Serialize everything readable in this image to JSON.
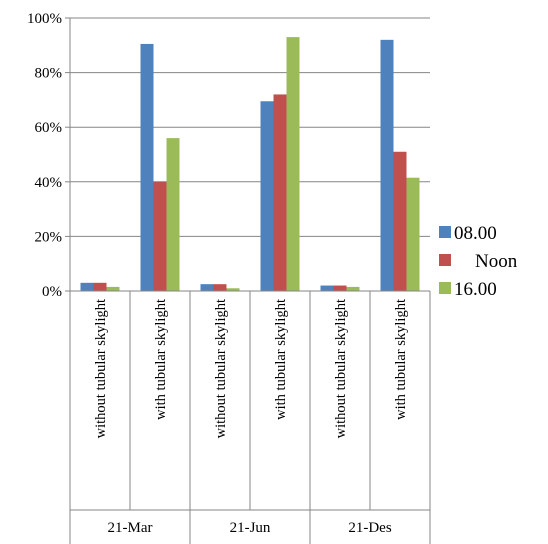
{
  "chart_data": {
    "type": "bar",
    "groups": [
      {
        "label": "21-Mar",
        "categories": [
          "without tubular skylight",
          "with tubular skylight"
        ]
      },
      {
        "label": "21-Jun",
        "categories": [
          "without tubular skylight",
          "with tubular skylight"
        ]
      },
      {
        "label": "21-Des",
        "categories": [
          "without tubular skylight",
          "with tubular skylight"
        ]
      }
    ],
    "series": [
      {
        "name": "08.00",
        "color": "#4F81BD",
        "values": [
          3,
          90.5,
          2.5,
          69.5,
          2,
          92
        ]
      },
      {
        "name": "Noon",
        "color": "#C0504D",
        "values": [
          3,
          40,
          2.5,
          72,
          2,
          51
        ]
      },
      {
        "name": "16.00",
        "color": "#9BBB59",
        "values": [
          1.5,
          56,
          1,
          93,
          1.5,
          41.5
        ]
      }
    ],
    "yticks": [
      "0%",
      "20%",
      "40%",
      "60%",
      "80%",
      "100%"
    ],
    "ylim": [
      0,
      100
    ],
    "grid": true,
    "legend_position": "right"
  }
}
